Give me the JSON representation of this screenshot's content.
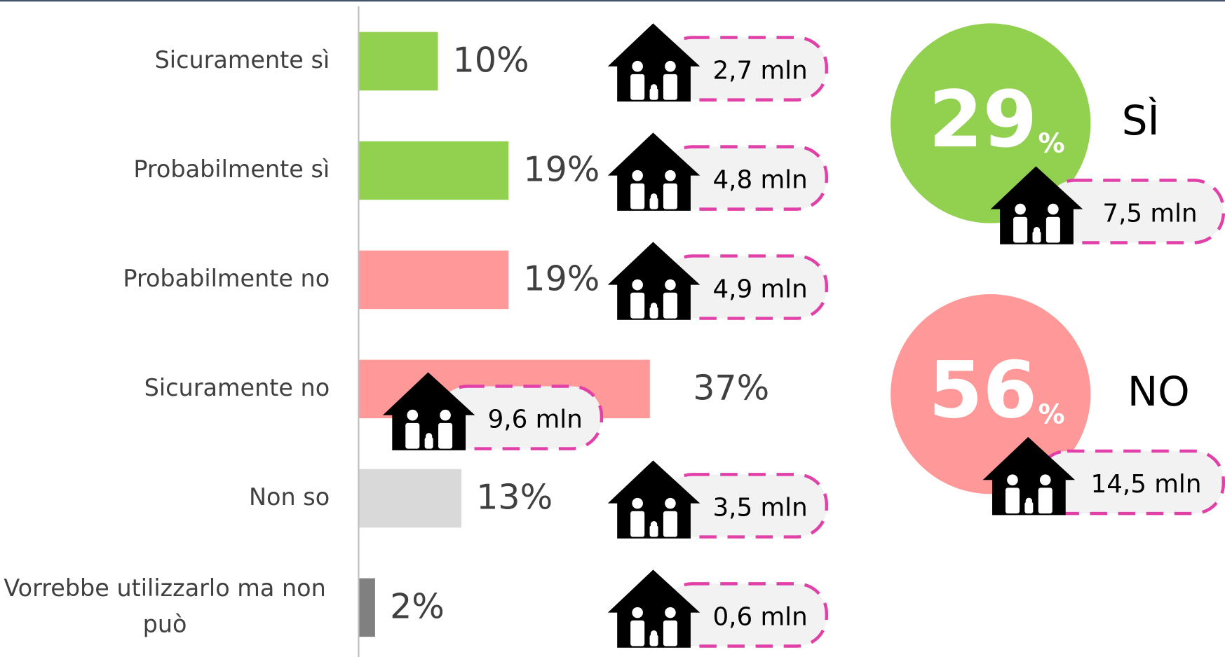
{
  "chart_data": {
    "type": "bar",
    "categories": [
      "Sicuramente sì",
      "Probabilmente sì",
      "Probabilmente no",
      "Sicuramente no",
      "Non so",
      "Vorrebbe utilizzarlo ma non può"
    ],
    "values": [
      10,
      19,
      19,
      37,
      13,
      2
    ],
    "value_labels": [
      "10%",
      "19%",
      "19%",
      "37%",
      "13%",
      "2%"
    ],
    "colors": [
      "#92d050",
      "#92d050",
      "#ff9999",
      "#ff9999",
      "#d9d9d9",
      "#808080"
    ],
    "households": [
      "2,7 mln",
      "4,8 mln",
      "4,9 mln",
      "9,6 mln",
      "3,5 mln",
      "0,6 mln"
    ],
    "summary": [
      {
        "name": "SÌ",
        "value": 29,
        "unit": "%",
        "households": "7,5 mln",
        "color": "#92d050"
      },
      {
        "name": "NO",
        "value": 56,
        "unit": "%",
        "households": "14,5 mln",
        "color": "#ff9999"
      }
    ]
  }
}
